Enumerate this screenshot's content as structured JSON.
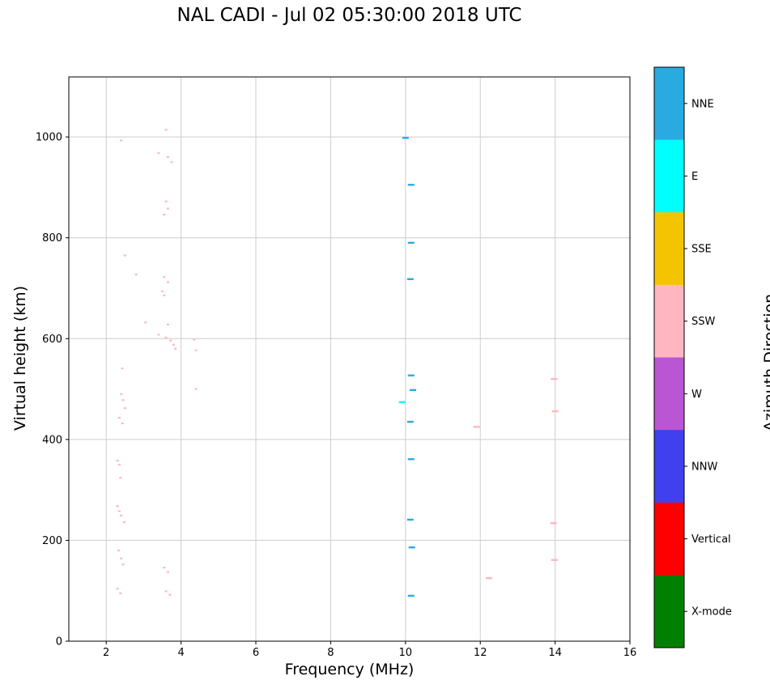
{
  "title": "NAL CADI - Jul 02 05:30:00 2018 UTC",
  "chart_data": {
    "type": "scatter",
    "title": "NAL CADI - Jul 02 05:30:00 2018 UTC",
    "xlabel": "Frequency (MHz)",
    "ylabel": "Virtual height (km)",
    "xlim": [
      1,
      16
    ],
    "ylim": [
      0,
      1119
    ],
    "xticks": [
      2,
      4,
      6,
      8,
      10,
      12,
      14,
      16
    ],
    "yticks": [
      0,
      200,
      400,
      600,
      800,
      1000
    ],
    "grid": true,
    "grid_color": "#cccccc",
    "colorbar": {
      "label": "Azimuth Direction",
      "bands": [
        {
          "label": "NNE",
          "color": "#29abe2"
        },
        {
          "label": "E",
          "color": "#00ffff"
        },
        {
          "label": "SSE",
          "color": "#f5c400"
        },
        {
          "label": "SSW",
          "color": "#ffb6c1"
        },
        {
          "label": "W",
          "color": "#ba55d3"
        },
        {
          "label": "NNW",
          "color": "#4040ee"
        },
        {
          "label": "Vertical",
          "color": "#ff0000"
        },
        {
          "label": "X-mode",
          "color": "#008000"
        }
      ]
    },
    "series": [
      {
        "name": "SSW",
        "color": "#ffb6c1",
        "marker": "dot",
        "points": [
          [
            2.4,
            993
          ],
          [
            3.6,
            1014
          ],
          [
            3.4,
            968
          ],
          [
            3.65,
            960
          ],
          [
            3.75,
            950
          ],
          [
            3.6,
            872
          ],
          [
            3.65,
            858
          ],
          [
            3.55,
            846
          ],
          [
            2.5,
            765
          ],
          [
            2.8,
            727
          ],
          [
            3.55,
            722
          ],
          [
            3.65,
            712
          ],
          [
            3.5,
            694
          ],
          [
            3.55,
            686
          ],
          [
            3.05,
            632
          ],
          [
            3.65,
            628
          ],
          [
            3.4,
            608
          ],
          [
            3.6,
            602
          ],
          [
            3.72,
            596
          ],
          [
            3.8,
            588
          ],
          [
            3.85,
            580
          ],
          [
            4.35,
            598
          ],
          [
            4.4,
            577
          ],
          [
            2.43,
            541
          ],
          [
            4.4,
            500
          ],
          [
            2.4,
            490
          ],
          [
            2.45,
            478
          ],
          [
            2.5,
            462
          ],
          [
            2.35,
            443
          ],
          [
            2.43,
            432
          ],
          [
            2.3,
            358
          ],
          [
            2.35,
            350
          ],
          [
            2.38,
            324
          ],
          [
            2.3,
            268
          ],
          [
            2.35,
            258
          ],
          [
            2.4,
            249
          ],
          [
            2.48,
            236
          ],
          [
            2.33,
            180
          ],
          [
            2.4,
            164
          ],
          [
            2.45,
            152
          ],
          [
            3.55,
            146
          ],
          [
            3.65,
            137
          ],
          [
            2.3,
            104
          ],
          [
            2.38,
            95
          ],
          [
            3.6,
            99
          ],
          [
            3.7,
            92
          ]
        ]
      },
      {
        "name": "SSW",
        "color": "#ffb6c1",
        "marker": "dash",
        "points": [
          [
            11.9,
            425
          ],
          [
            12.23,
            125
          ],
          [
            13.97,
            520
          ],
          [
            14.0,
            456
          ],
          [
            13.96,
            234
          ],
          [
            13.98,
            161
          ]
        ]
      },
      {
        "name": "NNE",
        "color": "#29abe2",
        "marker": "dash",
        "points": [
          [
            10.0,
            998
          ],
          [
            10.15,
            905
          ],
          [
            10.15,
            790
          ],
          [
            10.13,
            718
          ],
          [
            10.15,
            527
          ],
          [
            10.2,
            498
          ],
          [
            10.13,
            435
          ],
          [
            10.15,
            361
          ],
          [
            10.13,
            241
          ],
          [
            10.17,
            186
          ],
          [
            10.15,
            90
          ]
        ]
      },
      {
        "name": "E",
        "color": "#00ffff",
        "marker": "dash",
        "points": [
          [
            9.91,
            474
          ]
        ]
      }
    ]
  }
}
